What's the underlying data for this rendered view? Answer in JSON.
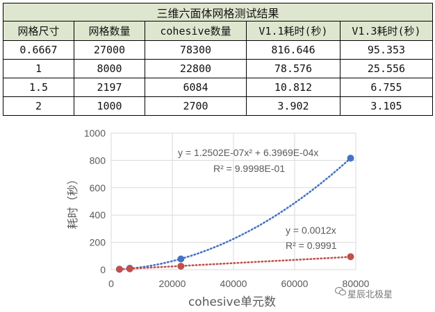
{
  "table": {
    "title": "三维六面体网格测试结果",
    "headers": [
      "网格尺寸",
      "网格数量",
      "cohesive数量",
      "V1.1耗时(秒)",
      "V1.3耗时(秒)"
    ],
    "rows": [
      [
        "0.6667",
        "27000",
        "78300",
        "816.646",
        "95.353"
      ],
      [
        "1",
        "8000",
        "22800",
        "78.576",
        "25.556"
      ],
      [
        "1.5",
        "2197",
        "6084",
        "10.812",
        "6.755"
      ],
      [
        "2",
        "1000",
        "2700",
        "3.902",
        "3.105"
      ]
    ]
  },
  "chart_data": {
    "type": "scatter",
    "xlabel": "cohesive单元数",
    "ylabel": "耗时（秒）",
    "xlim": [
      0,
      80000
    ],
    "ylim": [
      0,
      1000
    ],
    "x_ticks": [
      "0",
      "20000",
      "40000",
      "60000",
      "80000"
    ],
    "y_ticks": [
      "0",
      "200",
      "400",
      "600",
      "800",
      "1000"
    ],
    "grid": true,
    "legend": "none",
    "series": [
      {
        "color": "#4472c4",
        "points": [
          [
            2700,
            3.902
          ],
          [
            6084,
            10.812
          ],
          [
            22800,
            78.576
          ],
          [
            78300,
            816.646
          ]
        ],
        "trendline": {
          "kind": "poly2",
          "a": 1.2502e-07,
          "b": 0.00063969
        },
        "equation": "y = 1.2502E-07x² + 6.3969E-04x",
        "r_squared": "R² = 9.9998E-01"
      },
      {
        "color": "#c0504d",
        "points": [
          [
            2700,
            3.105
          ],
          [
            6084,
            6.755
          ],
          [
            22800,
            25.556
          ],
          [
            78300,
            95.353
          ]
        ],
        "trendline": {
          "kind": "linear",
          "slope": 0.0012
        },
        "equation": "y = 0.0012x",
        "r_squared": "R² = 0.9991"
      }
    ]
  },
  "watermark": "星辰北极星"
}
